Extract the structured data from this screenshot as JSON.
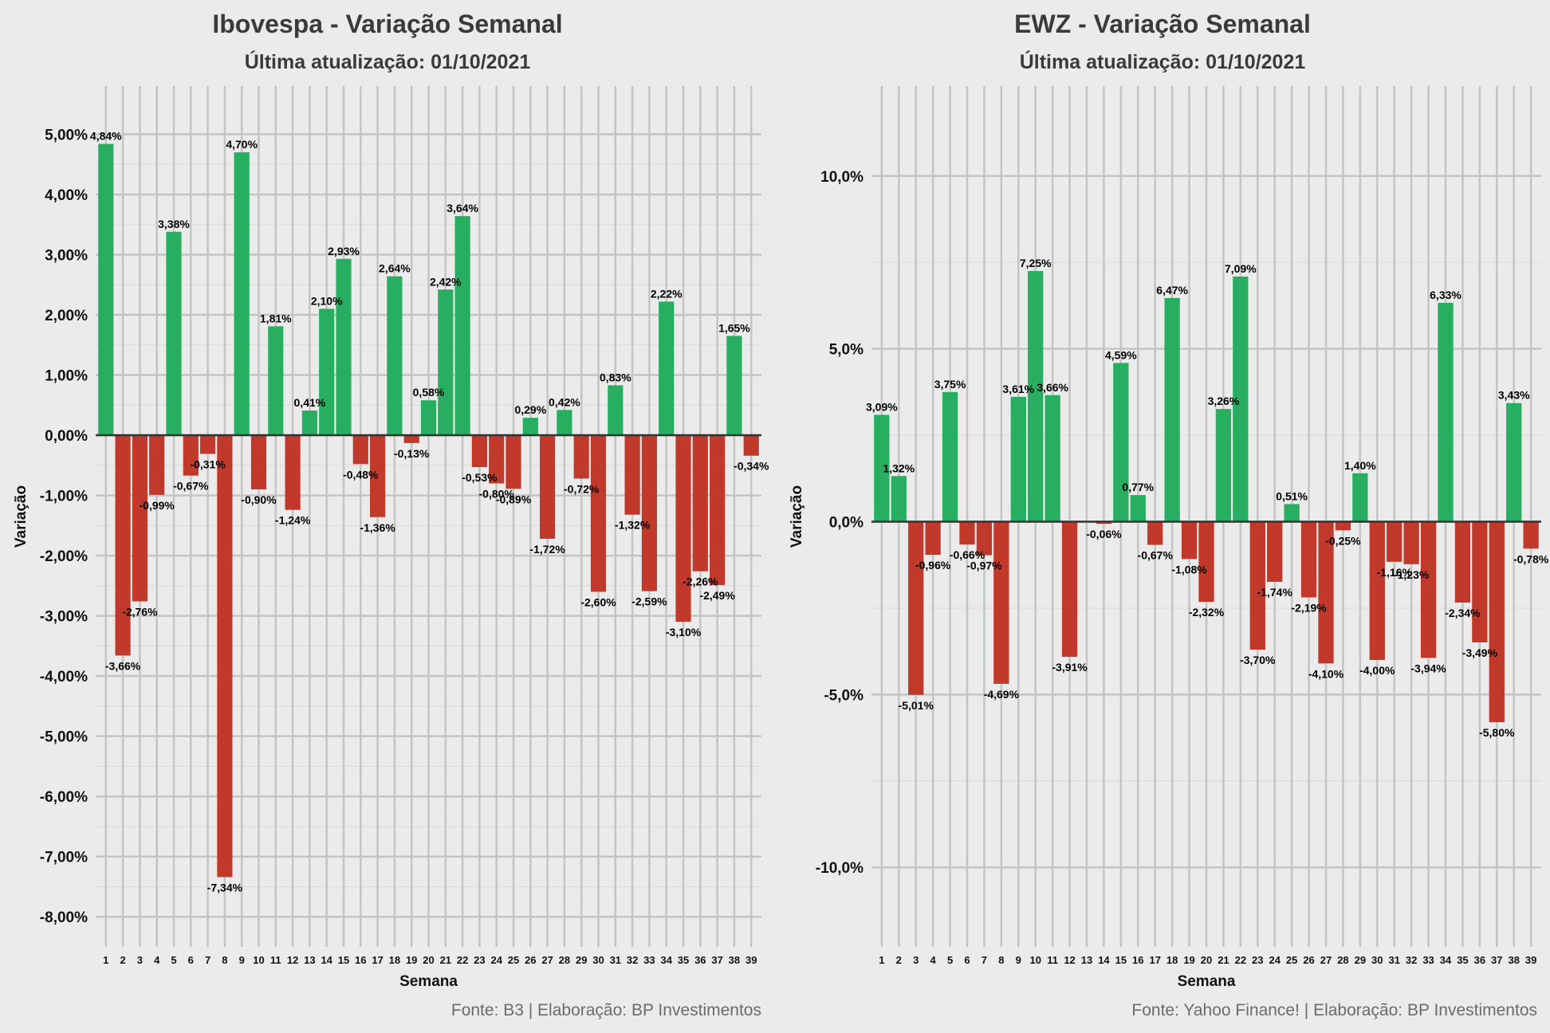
{
  "chart_data": [
    {
      "type": "bar",
      "title": "Ibovespa - Variação Semanal",
      "subtitle": "Última atualização: 01/10/2021",
      "xlabel": "Semana",
      "ylabel": "Variação",
      "caption": "Fonte: B3 | Elaboração: BP Investimentos",
      "categories": [
        "1",
        "2",
        "3",
        "4",
        "5",
        "6",
        "7",
        "8",
        "9",
        "10",
        "11",
        "12",
        "13",
        "14",
        "15",
        "16",
        "17",
        "18",
        "19",
        "20",
        "21",
        "22",
        "23",
        "24",
        "25",
        "26",
        "27",
        "28",
        "29",
        "30",
        "31",
        "32",
        "33",
        "34",
        "35",
        "36",
        "37",
        "38",
        "39"
      ],
      "values": [
        4.84,
        -3.66,
        -2.76,
        -0.99,
        3.38,
        -0.67,
        -0.31,
        -7.34,
        4.7,
        -0.9,
        1.81,
        -1.24,
        0.41,
        2.1,
        2.93,
        -0.48,
        -1.36,
        2.64,
        -0.13,
        0.58,
        2.42,
        3.64,
        -0.53,
        -0.8,
        -0.89,
        0.29,
        -1.72,
        0.42,
        -0.72,
        -2.6,
        0.83,
        -1.32,
        -2.59,
        2.22,
        -3.1,
        -2.26,
        -2.49,
        1.65,
        -0.34
      ],
      "labels": [
        "4,84%",
        "-3,66%",
        "-2,76%",
        "-0,99%",
        "3,38%",
        "-0,67%",
        "-0,31%",
        "-7,34%",
        "4,70%",
        "-0,90%",
        "1,81%",
        "-1,24%",
        "0,41%",
        "2,10%",
        "2,93%",
        "-0,48%",
        "-1,36%",
        "2,64%",
        "-0,13%",
        "0,58%",
        "2,42%",
        "3,64%",
        "-0,53%",
        "-0,80%",
        "-0,89%",
        "0,29%",
        "-1,72%",
        "0,42%",
        "-0,72%",
        "-2,60%",
        "0,83%",
        "-1,32%",
        "-2,59%",
        "2,22%",
        "-3,10%",
        "-2,26%",
        "-2,49%",
        "1,65%",
        "-0,34%"
      ],
      "ylim": [
        -8.5,
        5.8
      ],
      "yticks": [
        5,
        4,
        3,
        2,
        1,
        0,
        -1,
        -2,
        -3,
        -4,
        -5,
        -6,
        -7,
        -8
      ],
      "ytick_labels": [
        "5,00%",
        "4,00%",
        "3,00%",
        "2,00%",
        "1,00%",
        "0,00%",
        "-1,00%",
        "-2,00%",
        "-3,00%",
        "-4,00%",
        "-5,00%",
        "-6,00%",
        "-7,00%",
        "-8,00%"
      ],
      "grid": true,
      "colors": {
        "positive": "#27ae60",
        "negative": "#c0392b"
      }
    },
    {
      "type": "bar",
      "title": "EWZ - Variação Semanal",
      "subtitle": "Última atualização: 01/10/2021",
      "xlabel": "Semana",
      "ylabel": "Variação",
      "caption": "Fonte: Yahoo Finance! | Elaboração: BP Investimentos",
      "categories": [
        "1",
        "2",
        "3",
        "4",
        "5",
        "6",
        "7",
        "8",
        "9",
        "10",
        "11",
        "12",
        "13",
        "14",
        "15",
        "16",
        "17",
        "18",
        "19",
        "20",
        "21",
        "22",
        "23",
        "24",
        "25",
        "26",
        "27",
        "28",
        "29",
        "30",
        "31",
        "32",
        "33",
        "34",
        "35",
        "36",
        "37",
        "38",
        "39"
      ],
      "values": [
        3.09,
        1.32,
        -5.01,
        -0.96,
        3.75,
        -0.66,
        -0.97,
        -4.69,
        3.61,
        7.25,
        3.66,
        -3.91,
        0.0,
        -0.06,
        4.59,
        0.77,
        -0.67,
        6.47,
        -1.08,
        -2.32,
        3.26,
        7.09,
        -3.7,
        -1.74,
        0.51,
        -2.19,
        -4.1,
        -0.25,
        1.4,
        -4.0,
        -1.16,
        -1.23,
        -3.94,
        6.33,
        -2.34,
        -3.49,
        -5.8,
        3.43,
        -0.78
      ],
      "labels": [
        "3,09%",
        "1,32%",
        "-5,01%",
        "-0,96%",
        "3,75%",
        "-0,66%",
        "-0,97%",
        "-4,69%",
        "3,61%",
        "7,25%",
        "3,66%",
        "-3,91%",
        "",
        "-0,06%",
        "4,59%",
        "0,77%",
        "-0,67%",
        "6,47%",
        "-1,08%",
        "-2,32%",
        "3,26%",
        "7,09%",
        "-3,70%",
        "-1,74%",
        "0,51%",
        "-2,19%",
        "-4,10%",
        "-0,25%",
        "1,40%",
        "-4,00%",
        "-1,16%",
        "-1,23%",
        "-3,94%",
        "6,33%",
        "-2,34%",
        "-3,49%",
        "-5,80%",
        "3,43%",
        "-0,78%"
      ],
      "ylim": [
        -12.3,
        12.6
      ],
      "yticks": [
        10,
        5,
        0,
        -5,
        -10
      ],
      "ytick_labels": [
        "10,0%",
        "5,0%",
        "0,0%",
        "-5,0%",
        "-10,0%"
      ],
      "grid": true,
      "colors": {
        "positive": "#27ae60",
        "negative": "#c0392b"
      }
    }
  ]
}
